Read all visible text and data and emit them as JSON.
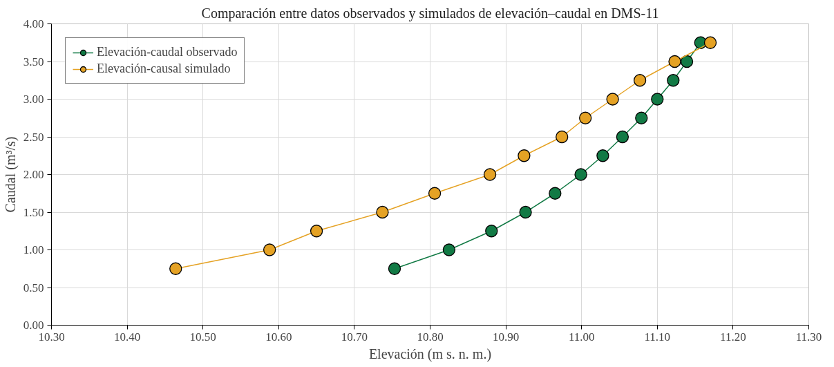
{
  "chart_data": {
    "type": "line",
    "title": "Comparación entre datos observados y simulados de elevación–caudal en DMS-11",
    "xlabel": "Elevación (m s. n. m.)",
    "ylabel": "Caudal (m³/s)",
    "xlim": [
      10.3,
      11.3
    ],
    "xticks": [
      {
        "value": 10.3,
        "label": "10.30"
      },
      {
        "value": 10.4,
        "label": "10.40"
      },
      {
        "value": 10.5,
        "label": "10.50"
      },
      {
        "value": 10.6,
        "label": "10.60"
      },
      {
        "value": 10.7,
        "label": "10.70"
      },
      {
        "value": 10.8,
        "label": "10.80"
      },
      {
        "value": 10.9,
        "label": "10.90"
      },
      {
        "value": 11.0,
        "label": "11.00"
      },
      {
        "value": 11.1,
        "label": "11.10"
      },
      {
        "value": 11.2,
        "label": "11.20"
      },
      {
        "value": 11.3,
        "label": "11.30"
      }
    ],
    "ylim": [
      0,
      4
    ],
    "yticks": [
      {
        "value": 0,
        "label": "0.00"
      },
      {
        "value": 0.5,
        "label": "0.50"
      },
      {
        "value": 1,
        "label": "1.00"
      },
      {
        "value": 1.5,
        "label": "1.50"
      },
      {
        "value": 2,
        "label": "2.00"
      },
      {
        "value": 2.5,
        "label": "2.50"
      },
      {
        "value": 3,
        "label": "3.00"
      },
      {
        "value": 3.5,
        "label": "3.50"
      },
      {
        "value": 4,
        "label": "4.00"
      }
    ],
    "grid": true,
    "legend": "top left",
    "marker": "circle",
    "line_style": "solid",
    "series": [
      {
        "name": "Elevación-caudal observado",
        "color": "#127a45",
        "x": [
          10.753,
          10.825,
          10.881,
          10.926,
          10.965,
          10.999,
          11.028,
          11.054,
          11.079,
          11.1,
          11.121,
          11.139,
          11.157
        ],
        "values": [
          0.75,
          1.0,
          1.25,
          1.5,
          1.75,
          2.0,
          2.25,
          2.5,
          2.75,
          3.0,
          3.25,
          3.5,
          3.75
        ]
      },
      {
        "name": "Elevación-causal simulado",
        "color": "#e5a224",
        "x": [
          10.464,
          10.588,
          10.65,
          10.737,
          10.806,
          10.879,
          10.924,
          10.974,
          11.005,
          11.041,
          11.077,
          11.123,
          11.17
        ],
        "values": [
          0.75,
          1.0,
          1.25,
          1.5,
          1.75,
          2.0,
          2.25,
          2.5,
          2.75,
          3.0,
          3.25,
          3.5,
          3.75
        ]
      }
    ]
  }
}
